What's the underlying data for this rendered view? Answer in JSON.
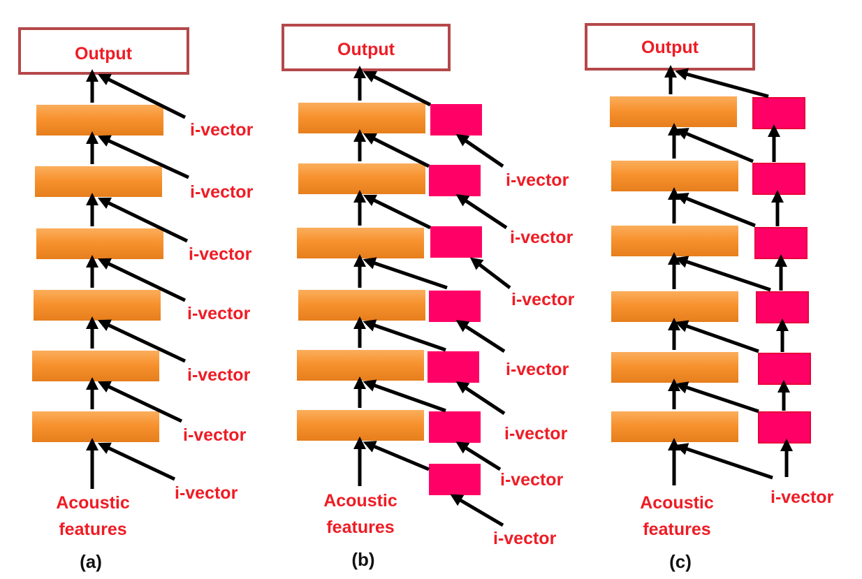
{
  "panels": [
    {
      "caption": "(a)",
      "output_label": "Output",
      "input_label_line1": "Acoustic",
      "input_label_line2": "features",
      "ivector_labels": [
        "i-vector",
        "i-vector",
        "i-vector",
        "i-vector",
        "i-vector",
        "i-vector",
        "i-vector"
      ]
    },
    {
      "caption": "(b)",
      "output_label": "Output",
      "input_label_line1": "Acoustic",
      "input_label_line2": "features",
      "ivector_labels": [
        "i-vector",
        "i-vector",
        "i-vector",
        "i-vector",
        "i-vector",
        "i-vector",
        "i-vector"
      ]
    },
    {
      "caption": "(c)",
      "output_label": "Output",
      "input_label_line1": "Acoustic",
      "input_label_line2": "features",
      "ivector_labels": [
        "i-vector"
      ]
    }
  ],
  "colors": {
    "hidden_layer": "#f7922f",
    "adapt_layer": "#ff0066",
    "output_border": "#b5484a",
    "label_red": "#ee1c25",
    "arrow": "#000000"
  }
}
